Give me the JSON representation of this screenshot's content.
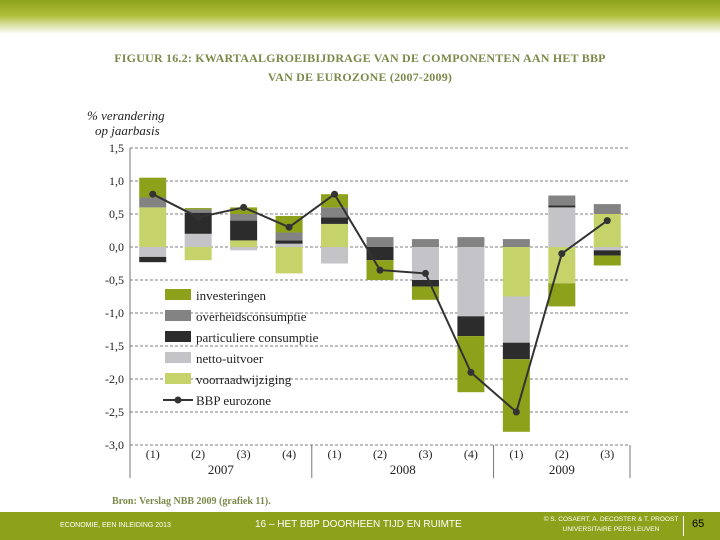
{
  "title": {
    "line1": "FIGUUR 16.2: KWARTAALGROEIBIJDRAGE VAN DE COMPONENTEN AAN HET BBP",
    "line2": "VAN DE EUROZONE (2007-2009)"
  },
  "source": "Bron: Verslag NBB 2009 (grafiek 11).",
  "footer": {
    "left": "ECONOMIE, EEN INLEIDING 2013",
    "center": "16 – HET BBP DOORHEEN TIJD EN RUIMTE",
    "right_line1": "© S. COSAERT, A. DECOSTER & T. PROOST",
    "right_line2": "UNIVERSITAIRE PERS LEUVEN",
    "page": "65"
  },
  "chart_data": {
    "type": "bar",
    "stacked": true,
    "ylabel_line1": "% verandering",
    "ylabel_line2": "op jaarbasis",
    "ylim": [
      -3.0,
      1.5
    ],
    "yticks": [
      1.5,
      1.0,
      0.5,
      0.0,
      -0.5,
      -1.0,
      -1.5,
      -2.0,
      -2.5,
      -3.0
    ],
    "ytick_labels": [
      "1,5",
      "1,0",
      "0,5",
      "0,0",
      "-0,5",
      "-1,0",
      "-1,5",
      "-2,0",
      "-2,5",
      "-3,0"
    ],
    "categories": [
      "(1)",
      "(2)",
      "(3)",
      "(4)",
      "(1)",
      "(2)",
      "(3)",
      "(4)",
      "(1)",
      "(2)",
      "(3)"
    ],
    "years": [
      {
        "label": "2007",
        "from": 0,
        "to": 3
      },
      {
        "label": "2008",
        "from": 4,
        "to": 7
      },
      {
        "label": "2009",
        "from": 8,
        "to": 10
      }
    ],
    "series": [
      {
        "name": "voorraadwijziging",
        "color": "#c6d36a",
        "values": [
          0.6,
          -0.2,
          0.1,
          -0.4,
          0.35,
          0.0,
          0.0,
          0.0,
          -0.75,
          -0.55,
          0.5
        ]
      },
      {
        "name": "netto-uitvoer",
        "color": "#c3c3c8",
        "values": [
          -0.15,
          0.2,
          -0.05,
          0.05,
          -0.25,
          0.0,
          -0.5,
          -1.05,
          -0.7,
          0.6,
          -0.05
        ]
      },
      {
        "name": "particuliere consumptie",
        "color": "#2c2c2c",
        "values": [
          -0.08,
          0.32,
          0.3,
          0.05,
          0.1,
          -0.2,
          -0.1,
          -0.3,
          -0.25,
          0.03,
          -0.08
        ]
      },
      {
        "name": "overheidsconsumptie",
        "color": "#838383",
        "values": [
          0.15,
          0.05,
          0.1,
          0.12,
          0.15,
          0.15,
          0.12,
          0.15,
          0.12,
          0.15,
          0.15
        ]
      },
      {
        "name": "investeringen",
        "color": "#8ea11a",
        "values": [
          0.3,
          0.02,
          0.1,
          0.25,
          0.2,
          -0.3,
          -0.2,
          -0.85,
          -1.1,
          -0.35,
          -0.15
        ]
      }
    ],
    "line": {
      "name": "BBP eurozone",
      "color": "#333333",
      "values": [
        0.8,
        0.45,
        0.6,
        0.3,
        0.8,
        -0.35,
        -0.4,
        -1.9,
        -2.5,
        -0.1,
        0.4
      ]
    },
    "legend": {
      "placement": "lower-left",
      "entries": [
        "investeringen",
        "overheidsconsumptie",
        "particuliere consumptie",
        "netto-uitvoer",
        "voorraadwijziging",
        "BBP eurozone"
      ]
    },
    "grid": true
  }
}
